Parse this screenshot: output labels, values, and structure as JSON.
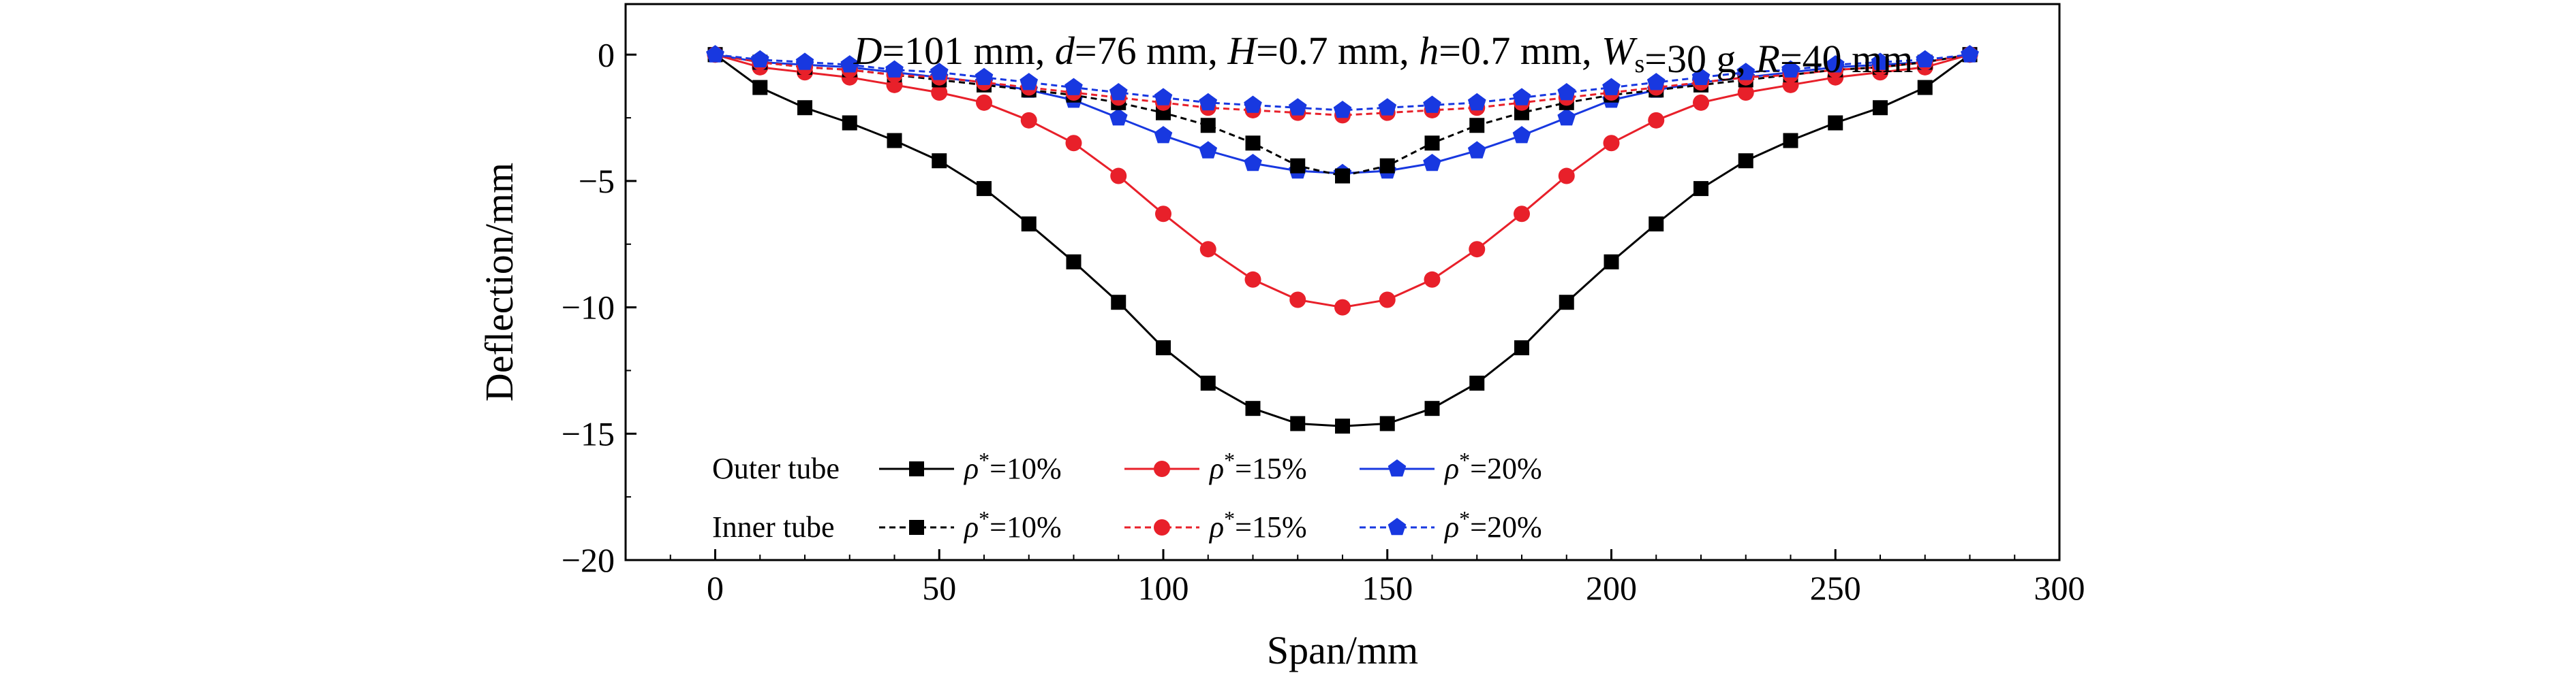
{
  "chart_data": {
    "type": "line",
    "annotation": {
      "parts": [
        {
          "text": "D",
          "style": "italic"
        },
        {
          "text": "=101 mm, "
        },
        {
          "text": "d",
          "style": "italic"
        },
        {
          "text": "=76 mm, "
        },
        {
          "text": "H",
          "style": "italic"
        },
        {
          "text": "=0.7 mm, "
        },
        {
          "text": "h",
          "style": "italic"
        },
        {
          "text": "=0.7 mm, "
        },
        {
          "text": "W",
          "style": "italic"
        },
        {
          "text": "s",
          "style": "sub"
        },
        {
          "text": "=30 g, "
        },
        {
          "text": "R",
          "style": "italic"
        },
        {
          "text": "=40 mm"
        }
      ]
    },
    "xlabel": "Span/mm",
    "ylabel": "Deflection/mm",
    "xlim": [
      -20,
      300
    ],
    "ylim": [
      -20,
      2
    ],
    "xticks": [
      0,
      50,
      100,
      150,
      200,
      250,
      300
    ],
    "yticks": [
      0,
      -5,
      -10,
      -15,
      -20
    ],
    "grid": false,
    "legend": {
      "placement": "bottom-left",
      "groups": [
        {
          "label": "Outer tube",
          "series_indices": [
            0,
            1,
            2
          ]
        },
        {
          "label": "Inner tube",
          "series_indices": [
            3,
            4,
            5
          ]
        }
      ]
    },
    "x": [
      0,
      10,
      20,
      30,
      40,
      50,
      60,
      70,
      80,
      90,
      100,
      110,
      120,
      130,
      140,
      150,
      160,
      170,
      180,
      190,
      200,
      210,
      220,
      230,
      240,
      250,
      260,
      270,
      280
    ],
    "series": [
      {
        "name": "ρ*=10%",
        "group": "Outer tube",
        "color": "#000000",
        "marker": "square",
        "dashed": false,
        "values": [
          0,
          -1.3,
          -2.1,
          -2.7,
          -3.4,
          -4.2,
          -5.3,
          -6.7,
          -8.2,
          -9.8,
          -11.6,
          -13.0,
          -14.0,
          -14.6,
          -14.7,
          -14.6,
          -14.0,
          -13.0,
          -11.6,
          -9.8,
          -8.2,
          -6.7,
          -5.3,
          -4.2,
          -3.4,
          -2.7,
          -2.1,
          -1.3,
          0
        ]
      },
      {
        "name": "ρ*=15%",
        "group": "Outer tube",
        "color": "#e8202a",
        "marker": "circle",
        "dashed": false,
        "values": [
          0,
          -0.5,
          -0.7,
          -0.9,
          -1.2,
          -1.5,
          -1.9,
          -2.6,
          -3.5,
          -4.8,
          -6.3,
          -7.7,
          -8.9,
          -9.7,
          -10.0,
          -9.7,
          -8.9,
          -7.7,
          -6.3,
          -4.8,
          -3.5,
          -2.6,
          -1.9,
          -1.5,
          -1.2,
          -0.9,
          -0.7,
          -0.5,
          0
        ]
      },
      {
        "name": "ρ*=20%",
        "group": "Outer tube",
        "color": "#1838e0",
        "marker": "pentagon",
        "dashed": false,
        "values": [
          0,
          -0.3,
          -0.4,
          -0.5,
          -0.7,
          -0.9,
          -1.1,
          -1.4,
          -1.8,
          -2.5,
          -3.2,
          -3.8,
          -4.3,
          -4.6,
          -4.7,
          -4.6,
          -4.3,
          -3.8,
          -3.2,
          -2.5,
          -1.8,
          -1.4,
          -1.1,
          -0.9,
          -0.7,
          -0.5,
          -0.4,
          -0.3,
          0
        ]
      },
      {
        "name": "ρ*=10%",
        "group": "Inner tube",
        "color": "#000000",
        "marker": "square",
        "dashed": true,
        "values": [
          0,
          -0.3,
          -0.5,
          -0.6,
          -0.8,
          -1.0,
          -1.2,
          -1.4,
          -1.6,
          -1.9,
          -2.3,
          -2.8,
          -3.5,
          -4.4,
          -4.8,
          -4.4,
          -3.5,
          -2.8,
          -2.3,
          -1.9,
          -1.6,
          -1.4,
          -1.2,
          -1.0,
          -0.8,
          -0.6,
          -0.5,
          -0.3,
          0
        ]
      },
      {
        "name": "ρ*=15%",
        "group": "Inner tube",
        "color": "#e8202a",
        "marker": "circle",
        "dashed": true,
        "values": [
          0,
          -0.3,
          -0.5,
          -0.6,
          -0.8,
          -0.9,
          -1.1,
          -1.3,
          -1.5,
          -1.7,
          -1.9,
          -2.1,
          -2.2,
          -2.3,
          -2.4,
          -2.3,
          -2.2,
          -2.1,
          -1.9,
          -1.7,
          -1.5,
          -1.3,
          -1.1,
          -0.9,
          -0.8,
          -0.6,
          -0.5,
          -0.3,
          0
        ]
      },
      {
        "name": "ρ*=20%",
        "group": "Inner tube",
        "color": "#1838e0",
        "marker": "pentagon",
        "dashed": true,
        "values": [
          0,
          -0.2,
          -0.3,
          -0.4,
          -0.6,
          -0.7,
          -0.9,
          -1.1,
          -1.3,
          -1.5,
          -1.7,
          -1.9,
          -2.0,
          -2.1,
          -2.2,
          -2.1,
          -2.0,
          -1.9,
          -1.7,
          -1.5,
          -1.3,
          -1.1,
          -0.9,
          -0.7,
          -0.6,
          -0.4,
          -0.3,
          -0.2,
          0
        ]
      }
    ]
  }
}
